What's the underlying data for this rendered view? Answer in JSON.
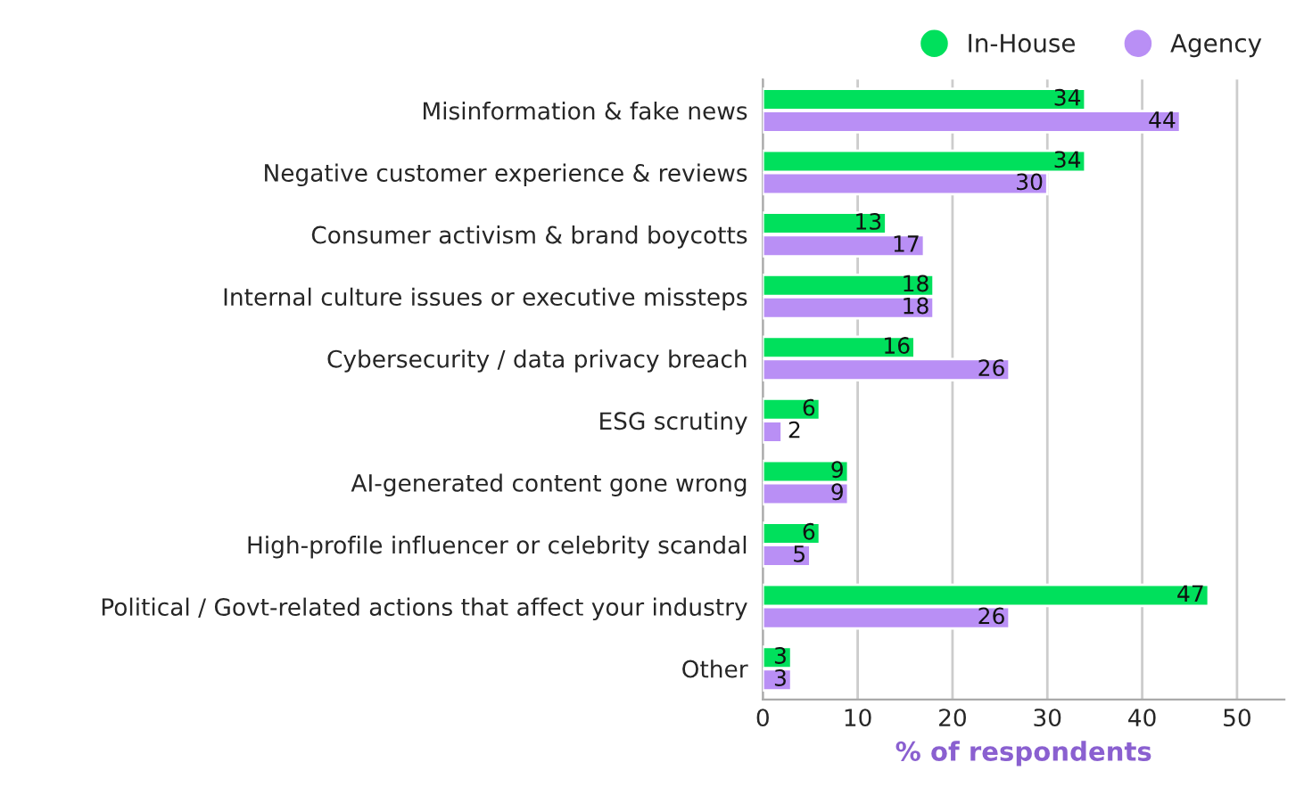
{
  "chart_data": {
    "type": "bar",
    "orientation": "horizontal",
    "categories": [
      "Misinformation & fake news",
      "Negative customer experience & reviews",
      "Consumer activism & brand boycotts",
      "Internal culture issues or executive missteps",
      "Cybersecurity / data privacy breach",
      "ESG scrutiny",
      "AI-generated content gone wrong",
      "High-profile influencer or celebrity scandal",
      "Political / Govt-related actions that affect your industry",
      "Other"
    ],
    "series": [
      {
        "name": "In-House",
        "color": "#00e05c",
        "values": [
          34,
          34,
          13,
          18,
          16,
          6,
          9,
          6,
          47,
          3
        ]
      },
      {
        "name": "Agency",
        "color": "#b98ff5",
        "values": [
          44,
          30,
          17,
          18,
          26,
          2,
          9,
          5,
          26,
          3
        ]
      }
    ],
    "xlabel": "% of respondents",
    "xlim": [
      0,
      55
    ],
    "xticks": [
      0,
      10,
      20,
      30,
      40,
      50
    ],
    "grid": "x",
    "legend": "top right",
    "data_labels": true
  }
}
